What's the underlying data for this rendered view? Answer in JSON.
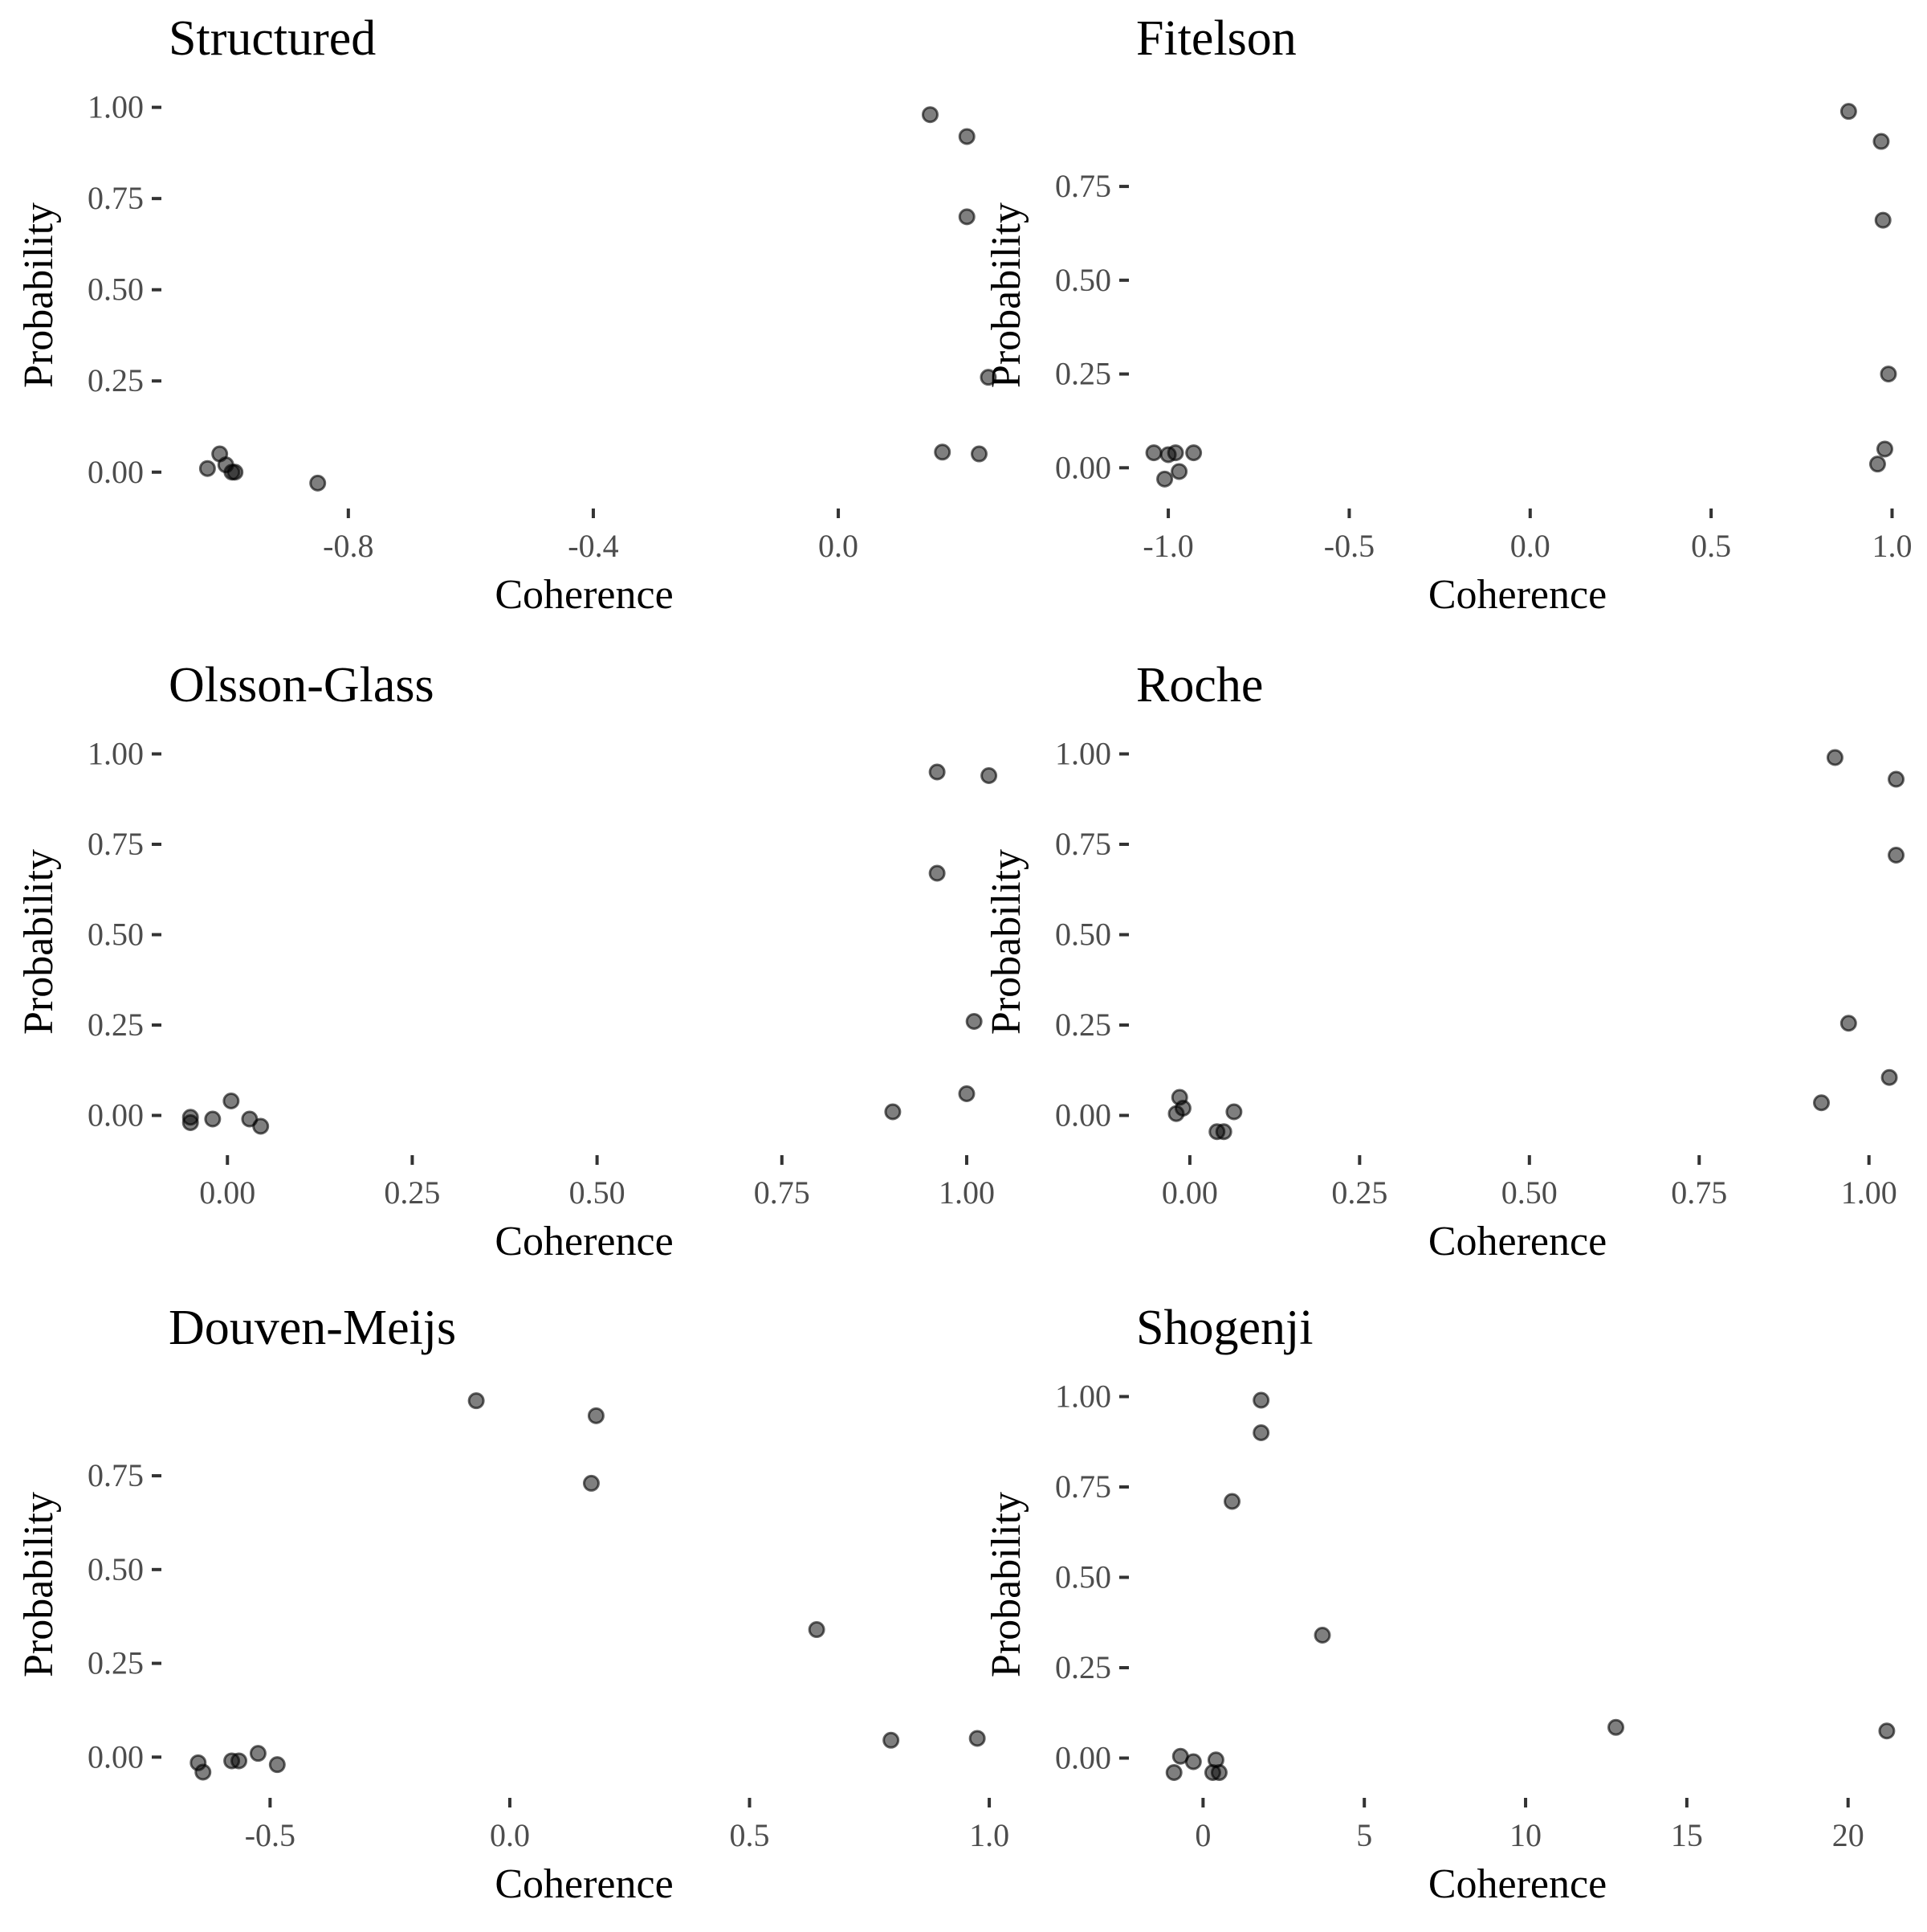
{
  "chart_data": [
    {
      "type": "scatter",
      "title": "Structured",
      "xlabel": "Coherence",
      "ylabel": "Probability",
      "xlim": [
        -1.1,
        0.27
      ],
      "ylim": [
        -0.06,
        1.03
      ],
      "xticks": [
        -0.8,
        -0.4,
        0.0
      ],
      "xtick_labels": [
        "-0.8",
        "-0.4",
        "0.0"
      ],
      "yticks": [
        0.0,
        0.25,
        0.5,
        0.75,
        1.0
      ],
      "ytick_labels": [
        "0.00",
        "0.25",
        "0.50",
        "0.75",
        "1.00"
      ],
      "grid": false,
      "points": [
        {
          "x": -1.03,
          "y": 0.01
        },
        {
          "x": -1.01,
          "y": 0.05
        },
        {
          "x": -1.0,
          "y": 0.02
        },
        {
          "x": -0.99,
          "y": 0.0
        },
        {
          "x": -0.985,
          "y": 0.0
        },
        {
          "x": -0.85,
          "y": -0.03
        },
        {
          "x": 0.15,
          "y": 0.98
        },
        {
          "x": 0.21,
          "y": 0.92
        },
        {
          "x": 0.21,
          "y": 0.7
        },
        {
          "x": 0.245,
          "y": 0.26
        },
        {
          "x": 0.17,
          "y": 0.055
        },
        {
          "x": 0.23,
          "y": 0.05
        }
      ]
    },
    {
      "type": "scatter",
      "title": "Fitelson",
      "xlabel": "Coherence",
      "ylabel": "Probability",
      "xlim": [
        -1.1,
        1.03
      ],
      "ylim": [
        -0.07,
        0.99
      ],
      "xticks": [
        -1.0,
        -0.5,
        0.0,
        0.5,
        1.0
      ],
      "xtick_labels": [
        "-1.0",
        "-0.5",
        "0.0",
        "0.5",
        "1.0"
      ],
      "yticks": [
        0.0,
        0.25,
        0.5,
        0.75
      ],
      "ytick_labels": [
        "0.00",
        "0.25",
        "0.50",
        "0.75"
      ],
      "grid": false,
      "points": [
        {
          "x": -1.04,
          "y": 0.04
        },
        {
          "x": -1.0,
          "y": 0.035
        },
        {
          "x": -0.98,
          "y": 0.04
        },
        {
          "x": -0.93,
          "y": 0.04
        },
        {
          "x": -0.97,
          "y": -0.01
        },
        {
          "x": -1.01,
          "y": -0.03
        },
        {
          "x": 0.88,
          "y": 0.95
        },
        {
          "x": 0.97,
          "y": 0.87
        },
        {
          "x": 0.975,
          "y": 0.66
        },
        {
          "x": 0.99,
          "y": 0.25
        },
        {
          "x": 0.98,
          "y": 0.05
        },
        {
          "x": 0.96,
          "y": 0.01
        }
      ]
    },
    {
      "type": "scatter",
      "title": "Olsson-Glass",
      "xlabel": "Coherence",
      "ylabel": "Probability",
      "xlim": [
        -0.085,
        1.05
      ],
      "ylim": [
        -0.07,
        1.03
      ],
      "xticks": [
        0.0,
        0.25,
        0.5,
        0.75,
        1.0
      ],
      "xtick_labels": [
        "0.00",
        "0.25",
        "0.50",
        "0.75",
        "1.00"
      ],
      "yticks": [
        0.0,
        0.25,
        0.5,
        0.75,
        1.0
      ],
      "ytick_labels": [
        "0.00",
        "0.25",
        "0.50",
        "0.75",
        "1.00"
      ],
      "grid": false,
      "points": [
        {
          "x": -0.05,
          "y": -0.005
        },
        {
          "x": -0.05,
          "y": -0.02
        },
        {
          "x": -0.02,
          "y": -0.01
        },
        {
          "x": 0.005,
          "y": 0.04
        },
        {
          "x": 0.03,
          "y": -0.01
        },
        {
          "x": 0.045,
          "y": -0.03
        },
        {
          "x": 0.96,
          "y": 0.95
        },
        {
          "x": 1.03,
          "y": 0.94
        },
        {
          "x": 0.96,
          "y": 0.67
        },
        {
          "x": 1.01,
          "y": 0.26
        },
        {
          "x": 1.0,
          "y": 0.06
        },
        {
          "x": 0.9,
          "y": 0.01
        }
      ]
    },
    {
      "type": "scatter",
      "title": "Roche",
      "xlabel": "Coherence",
      "ylabel": "Probability",
      "xlim": [
        -0.085,
        1.05
      ],
      "ylim": [
        -0.07,
        1.03
      ],
      "xticks": [
        0.0,
        0.25,
        0.5,
        0.75,
        1.0
      ],
      "xtick_labels": [
        "0.00",
        "0.25",
        "0.50",
        "0.75",
        "1.00"
      ],
      "yticks": [
        0.0,
        0.25,
        0.5,
        0.75,
        1.0
      ],
      "ytick_labels": [
        "0.00",
        "0.25",
        "0.50",
        "0.75",
        "1.00"
      ],
      "grid": false,
      "points": [
        {
          "x": -0.02,
          "y": 0.005
        },
        {
          "x": -0.015,
          "y": 0.05
        },
        {
          "x": -0.01,
          "y": 0.02
        },
        {
          "x": 0.04,
          "y": -0.045
        },
        {
          "x": 0.05,
          "y": -0.045
        },
        {
          "x": 0.065,
          "y": 0.01
        },
        {
          "x": 0.95,
          "y": 0.99
        },
        {
          "x": 1.04,
          "y": 0.93
        },
        {
          "x": 1.04,
          "y": 0.72
        },
        {
          "x": 0.97,
          "y": 0.255
        },
        {
          "x": 1.03,
          "y": 0.105
        },
        {
          "x": 0.93,
          "y": 0.035
        }
      ]
    },
    {
      "type": "scatter",
      "title": "Douven-Meijs",
      "xlabel": "Coherence",
      "ylabel": "Probability",
      "xlim": [
        -0.72,
        1.03
      ],
      "ylim": [
        -0.07,
        0.99
      ],
      "xticks": [
        -0.5,
        0.0,
        0.5,
        1.0
      ],
      "xtick_labels": [
        "-0.5",
        "0.0",
        "0.5",
        "1.0"
      ],
      "yticks": [
        0.0,
        0.25,
        0.5,
        0.75
      ],
      "ytick_labels": [
        "0.00",
        "0.25",
        "0.50",
        "0.75"
      ],
      "grid": false,
      "points": [
        {
          "x": -0.65,
          "y": -0.015
        },
        {
          "x": -0.64,
          "y": -0.04
        },
        {
          "x": -0.58,
          "y": -0.01
        },
        {
          "x": -0.565,
          "y": -0.01
        },
        {
          "x": -0.525,
          "y": 0.01
        },
        {
          "x": -0.485,
          "y": -0.02
        },
        {
          "x": -0.07,
          "y": 0.95
        },
        {
          "x": 0.18,
          "y": 0.91
        },
        {
          "x": 0.17,
          "y": 0.73
        },
        {
          "x": 0.64,
          "y": 0.34
        },
        {
          "x": 0.795,
          "y": 0.045
        },
        {
          "x": 0.975,
          "y": 0.05
        }
      ]
    },
    {
      "type": "scatter",
      "title": "Shogenji",
      "xlabel": "Coherence",
      "ylabel": "Probability",
      "xlim": [
        -2.2,
        21.7
      ],
      "ylim": [
        -0.07,
        1.03
      ],
      "xticks": [
        0,
        5,
        10,
        15,
        20
      ],
      "xtick_labels": [
        "0",
        "5",
        "10",
        "15",
        "20"
      ],
      "yticks": [
        0.0,
        0.25,
        0.5,
        0.75,
        1.0
      ],
      "ytick_labels": [
        "0.00",
        "0.25",
        "0.50",
        "0.75",
        "1.00"
      ],
      "grid": false,
      "points": [
        {
          "x": -0.9,
          "y": -0.04
        },
        {
          "x": -0.7,
          "y": 0.005
        },
        {
          "x": -0.3,
          "y": -0.01
        },
        {
          "x": 0.3,
          "y": -0.04
        },
        {
          "x": 0.4,
          "y": -0.005
        },
        {
          "x": 0.5,
          "y": -0.04
        },
        {
          "x": 1.8,
          "y": 0.99
        },
        {
          "x": 1.8,
          "y": 0.9
        },
        {
          "x": 0.9,
          "y": 0.71
        },
        {
          "x": 3.7,
          "y": 0.34
        },
        {
          "x": 12.8,
          "y": 0.085
        },
        {
          "x": 21.2,
          "y": 0.075
        }
      ]
    }
  ]
}
